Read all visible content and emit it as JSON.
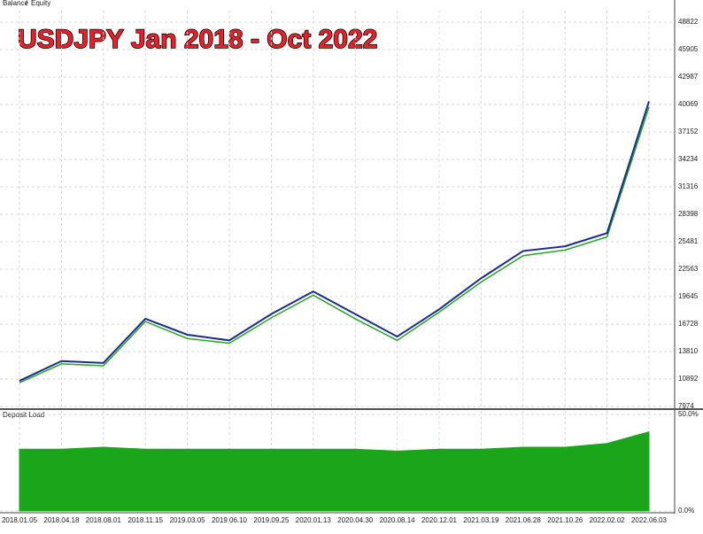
{
  "chart_data": [
    {
      "type": "line",
      "title": "USDJPY Jan 2018 -  Oct 2022",
      "categories": [
        "2018.01.05",
        "2018.04.18",
        "2018.08.01",
        "2018.11.15",
        "2019.03.05",
        "2019.06.10",
        "2019.09.25",
        "2020.01.13",
        "2020.04.30",
        "2020.08.14",
        "2020.12.01",
        "2021.03.19",
        "2021.06.28",
        "2021.10.26",
        "2022.02.02",
        "2022.06.03"
      ],
      "series": [
        {
          "name": "Balance",
          "color": "#1c2a8c",
          "values": [
            10700,
            12800,
            12600,
            17300,
            15600,
            15000,
            17800,
            20200,
            17800,
            15400,
            18300,
            21600,
            24500,
            25000,
            26400,
            40400
          ]
        },
        {
          "name": "Equity",
          "color": "#22a822",
          "values": [
            10500,
            12500,
            12300,
            17000,
            15200,
            14700,
            17400,
            19800,
            17300,
            15000,
            18000,
            21200,
            24000,
            24600,
            26000,
            39800
          ]
        }
      ],
      "ylim": [
        7974,
        48822
      ],
      "yticks": [
        7974,
        10892,
        13810,
        16728,
        19645,
        22563,
        25481,
        28398,
        31316,
        34234,
        37152,
        40069,
        42987,
        45905,
        48822
      ],
      "grid": true
    },
    {
      "type": "area",
      "series": [
        {
          "name": "Deposit Load",
          "color": "#1aa51a",
          "values": [
            32,
            32,
            33,
            32,
            32,
            32,
            32,
            32,
            32,
            31,
            32,
            32,
            33,
            33,
            35,
            41
          ]
        }
      ],
      "ylim": [
        0,
        50
      ],
      "yticks": [
        {
          "value": 0,
          "label": "0.0%"
        },
        {
          "value": 50,
          "label": "50.0%"
        }
      ],
      "grid": true
    }
  ]
}
